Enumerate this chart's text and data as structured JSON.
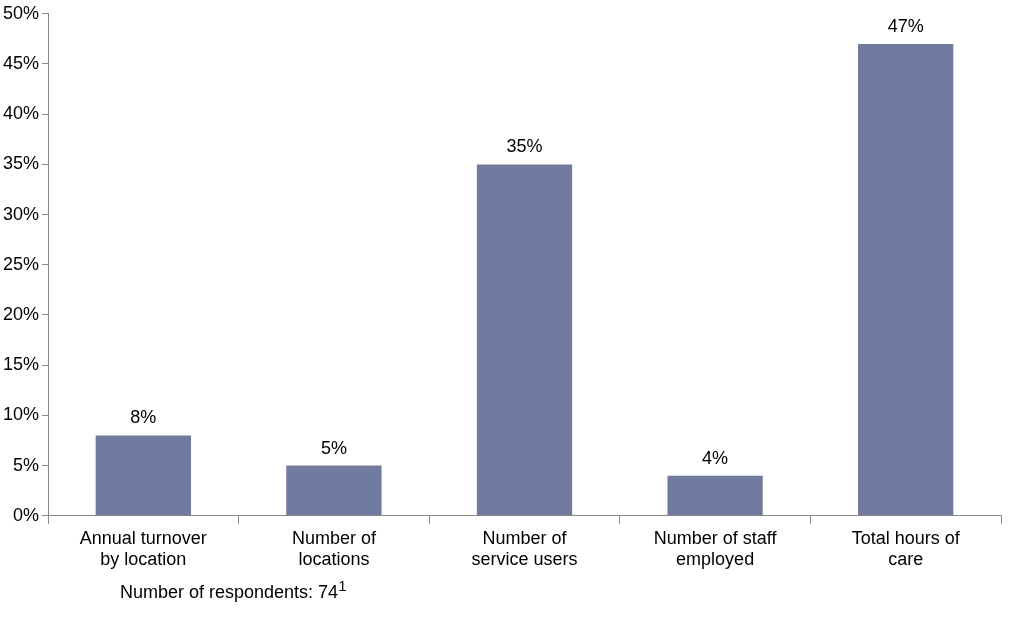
{
  "chart_data": {
    "type": "bar",
    "categories": [
      "Annual turnover by location",
      "Number of locations",
      "Number of service users",
      "Number of staff employed",
      "Total hours of care"
    ],
    "values": [
      8,
      5,
      35,
      4,
      47
    ],
    "color": "#717ba0",
    "ylim": [
      0,
      50
    ],
    "yticks": [
      {
        "value": 0,
        "label": "0%"
      },
      {
        "value": 5,
        "label": "5%"
      },
      {
        "value": 10,
        "label": "10%"
      },
      {
        "value": 15,
        "label": "15%"
      },
      {
        "value": 20,
        "label": "20%"
      },
      {
        "value": 25,
        "label": "25%"
      },
      {
        "value": 30,
        "label": "30%"
      },
      {
        "value": 35,
        "label": "35%"
      },
      {
        "value": 40,
        "label": "40%"
      },
      {
        "value": 45,
        "label": "45%"
      },
      {
        "value": 50,
        "label": "50%"
      }
    ],
    "data_labels": true,
    "value_labels": [
      "8%",
      "5%",
      "35%",
      "4%",
      "47%"
    ],
    "grid": false,
    "legend": false,
    "annotations": [
      "Number of respondents: 74$^{1}$"
    ]
  }
}
